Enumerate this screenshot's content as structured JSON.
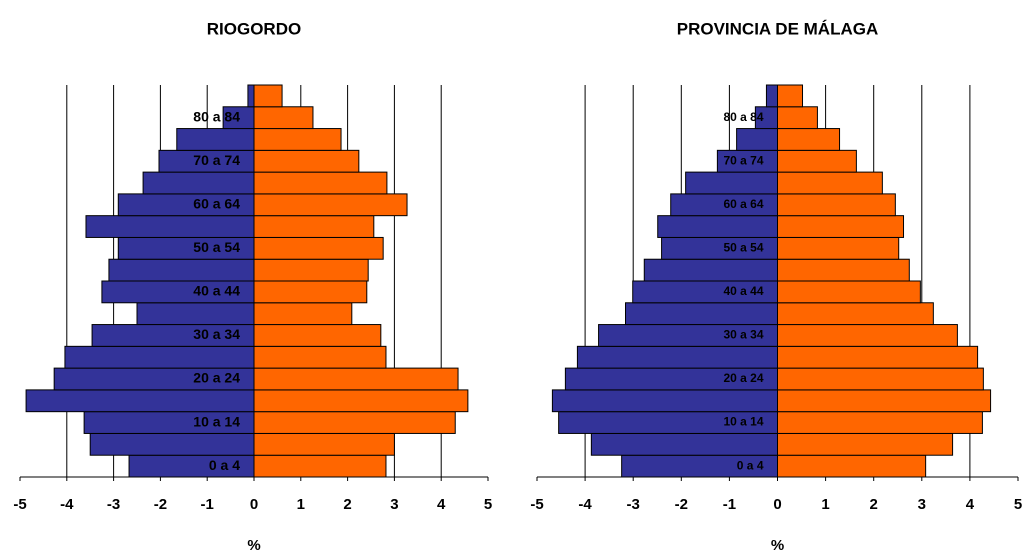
{
  "chart_data": [
    {
      "type": "pyramid",
      "title": "RIOGORDO",
      "x_label": "%",
      "categories": [
        "0 a 4",
        null,
        "10 a 14",
        null,
        "20 a 24",
        null,
        "30 a 34",
        null,
        "40 a 44",
        null,
        "50 a 54",
        null,
        "60 a 64",
        null,
        "70 a 74",
        null,
        "80 a 84",
        null
      ],
      "series": [
        {
          "color": "#333399",
          "values": [
            -2.67,
            -3.5,
            -3.63,
            -4.87,
            -4.27,
            -4.04,
            -3.46,
            -2.5,
            -3.25,
            -3.1,
            -2.9,
            -3.59,
            -2.9,
            -2.37,
            -2.03,
            -1.65,
            -0.66,
            -0.13
          ]
        },
        {
          "color": "#ff6600",
          "values": [
            2.82,
            3.0,
            4.3,
            4.57,
            4.36,
            2.82,
            2.71,
            2.09,
            2.41,
            2.44,
            2.76,
            2.56,
            3.27,
            2.84,
            2.24,
            1.86,
            1.26,
            0.6
          ]
        }
      ],
      "xlim": [
        -5,
        5
      ],
      "xticks": [
        -5,
        -4,
        -3,
        -2,
        -1,
        0,
        1,
        2,
        3,
        4,
        5
      ],
      "grid": true
    },
    {
      "type": "pyramid",
      "title": "PROVINCIA DE MÁLAGA",
      "x_label": "%",
      "categories": [
        "0 a 4",
        null,
        "10 a 14",
        null,
        "20 a 24",
        null,
        "30 a 34",
        null,
        "40 a 44",
        null,
        "50 a 54",
        null,
        "60 a 64",
        null,
        "70 a 74",
        null,
        "80 a 84",
        null
      ],
      "series": [
        {
          "color": "#333399",
          "values": [
            -3.24,
            -3.87,
            -4.55,
            -4.68,
            -4.41,
            -4.16,
            -3.72,
            -3.16,
            -3.01,
            -2.77,
            -2.41,
            -2.49,
            -2.22,
            -1.91,
            -1.25,
            -0.85,
            -0.46,
            -0.23
          ]
        },
        {
          "color": "#ff6600",
          "values": [
            3.08,
            3.64,
            4.26,
            4.43,
            4.28,
            4.16,
            3.74,
            3.24,
            2.97,
            2.74,
            2.52,
            2.62,
            2.45,
            2.18,
            1.64,
            1.29,
            0.83,
            0.52
          ]
        }
      ],
      "xlim": [
        -5,
        5
      ],
      "xticks": [
        -5,
        -4,
        -3,
        -2,
        -1,
        0,
        1,
        2,
        3,
        4,
        5
      ],
      "grid": true
    }
  ]
}
